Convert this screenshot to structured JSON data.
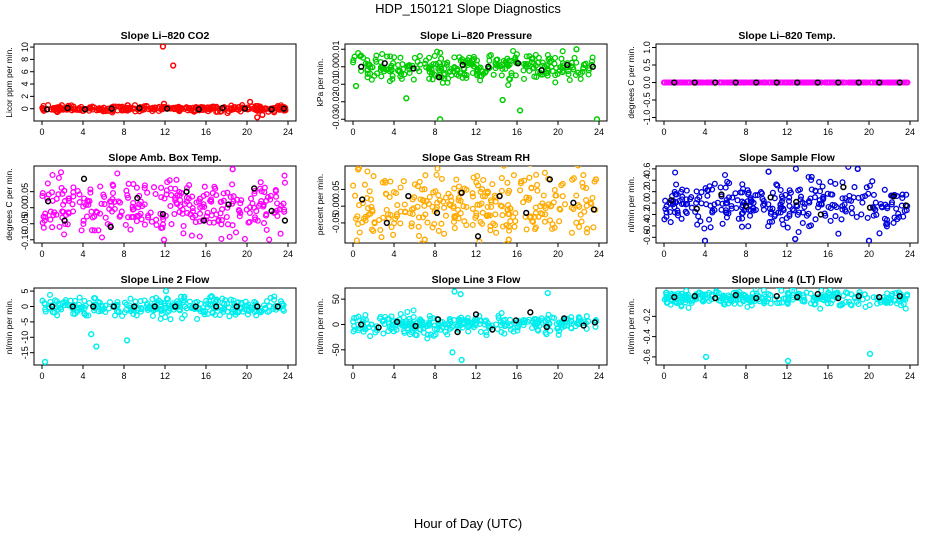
{
  "title": "HDP_150121  Slope Diagnostics",
  "xlabel": "Hour of Day (UTC)",
  "chart_data": [
    {
      "type": "scatter",
      "title": "Slope Li–820 CO2",
      "ylabel": "Licor ppm per min.",
      "color": "#ff0000",
      "xlim": [
        0,
        24
      ],
      "xticks": [
        0,
        4,
        8,
        12,
        16,
        20,
        24
      ],
      "ylim": [
        -2,
        10.5
      ],
      "yticks": [
        0,
        2,
        4,
        6,
        8,
        10
      ],
      "center": 0,
      "spread": 0.25,
      "outliers": [
        {
          "x": 11.8,
          "y": 10.1
        },
        {
          "x": 12.8,
          "y": 7.0
        },
        {
          "x": 11.9,
          "y": 0.8
        },
        {
          "x": 20.3,
          "y": 1.1
        },
        {
          "x": 21,
          "y": -1.4
        },
        {
          "x": 21.5,
          "y": -1.0
        }
      ],
      "black_points": [
        {
          "x": 0.5,
          "y": -0.1
        },
        {
          "x": 2.5,
          "y": 0.1
        },
        {
          "x": 4.2,
          "y": -0.1
        },
        {
          "x": 6.8,
          "y": 0.0
        },
        {
          "x": 9.5,
          "y": 0.1
        },
        {
          "x": 12.2,
          "y": 0.0
        },
        {
          "x": 15.3,
          "y": -0.1
        },
        {
          "x": 17.6,
          "y": 0.1
        },
        {
          "x": 19.8,
          "y": 0.0
        },
        {
          "x": 22.4,
          "y": -0.1
        },
        {
          "x": 23.6,
          "y": 0.0
        }
      ]
    },
    {
      "type": "scatter",
      "title": "Slope Li–820 Pressure",
      "ylabel": "kPa per min.",
      "color": "#00cc00",
      "xlim": [
        0,
        24
      ],
      "xticks": [
        0,
        4,
        8,
        12,
        16,
        20,
        24
      ],
      "ylim": [
        -0.031,
        0.013
      ],
      "yticks": [
        -0.03,
        -0.02,
        -0.01,
        0.0,
        0.01
      ],
      "center": 0,
      "spread": 0.004,
      "outliers": [
        {
          "x": 0.3,
          "y": -0.011
        },
        {
          "x": 5.2,
          "y": -0.018
        },
        {
          "x": 8.5,
          "y": -0.03
        },
        {
          "x": 14.6,
          "y": -0.019
        },
        {
          "x": 16.3,
          "y": -0.025
        },
        {
          "x": 23.8,
          "y": -0.03
        },
        {
          "x": 21.8,
          "y": 0.01
        }
      ],
      "black_points": [
        {
          "x": 0.8,
          "y": 0.0
        },
        {
          "x": 3.1,
          "y": 0.002
        },
        {
          "x": 5.9,
          "y": -0.001
        },
        {
          "x": 8.4,
          "y": -0.006
        },
        {
          "x": 10.7,
          "y": 0.001
        },
        {
          "x": 13.2,
          "y": 0.0
        },
        {
          "x": 16.1,
          "y": 0.002
        },
        {
          "x": 18.4,
          "y": -0.002
        },
        {
          "x": 20.9,
          "y": 0.001
        },
        {
          "x": 23.4,
          "y": 0.0
        }
      ]
    },
    {
      "type": "scatter",
      "title": "Slope Li–820 Temp.",
      "ylabel": "degrees C per min.",
      "color": "#ff00ff",
      "xlim": [
        0,
        24
      ],
      "xticks": [
        0,
        4,
        8,
        12,
        16,
        20,
        24
      ],
      "ylim": [
        -1.1,
        1.1
      ],
      "yticks": [
        -1.0,
        -0.5,
        0.0,
        0.5,
        1.0
      ],
      "center": 0,
      "spread": 0.0,
      "outliers": [],
      "black_points": [
        {
          "x": 1,
          "y": 0
        },
        {
          "x": 3,
          "y": 0
        },
        {
          "x": 5,
          "y": 0
        },
        {
          "x": 7,
          "y": 0
        },
        {
          "x": 9,
          "y": 0
        },
        {
          "x": 11,
          "y": 0
        },
        {
          "x": 13,
          "y": 0
        },
        {
          "x": 15,
          "y": 0
        },
        {
          "x": 17,
          "y": 0
        },
        {
          "x": 19,
          "y": 0
        },
        {
          "x": 21,
          "y": 0
        },
        {
          "x": 23,
          "y": 0
        }
      ]
    },
    {
      "type": "scatter",
      "title": "Slope Amb. Box Temp.",
      "ylabel": "degrees C per min.",
      "color": "#ff00ff",
      "xlim": [
        0,
        24
      ],
      "xticks": [
        0,
        4,
        8,
        12,
        16,
        20,
        24
      ],
      "ylim": [
        -0.11,
        0.13
      ],
      "yticks": [
        -0.1,
        -0.05,
        0.0,
        0.05
      ],
      "center": 0,
      "spread": 0.04,
      "outliers": [
        {
          "x": 11.9,
          "y": -0.1
        },
        {
          "x": 18.6,
          "y": 0.12
        }
      ],
      "black_points": [
        {
          "x": 0.6,
          "y": 0.02
        },
        {
          "x": 2.2,
          "y": -0.04
        },
        {
          "x": 4.1,
          "y": 0.09
        },
        {
          "x": 6.7,
          "y": -0.06
        },
        {
          "x": 9.3,
          "y": 0.03
        },
        {
          "x": 11.8,
          "y": -0.02
        },
        {
          "x": 14.1,
          "y": 0.05
        },
        {
          "x": 15.8,
          "y": -0.04
        },
        {
          "x": 18.2,
          "y": 0.01
        },
        {
          "x": 20.7,
          "y": 0.06
        },
        {
          "x": 22.4,
          "y": -0.01
        },
        {
          "x": 23.7,
          "y": -0.04
        }
      ]
    },
    {
      "type": "scatter",
      "title": "Slope Gas Stream RH",
      "ylabel": "percent per min.",
      "color": "#ffaa00",
      "xlim": [
        0,
        24
      ],
      "xticks": [
        0,
        4,
        8,
        12,
        16,
        20,
        24
      ],
      "ylim": [
        -0.11,
        0.12
      ],
      "yticks": [
        -0.05,
        0.0,
        0.05
      ],
      "center": 0,
      "spread": 0.05,
      "outliers": [
        {
          "x": 0.5,
          "y": 0.11
        },
        {
          "x": 7.0,
          "y": -0.1
        },
        {
          "x": 15.2,
          "y": -0.1
        },
        {
          "x": 23.7,
          "y": 0.08
        }
      ],
      "black_points": [
        {
          "x": 0.9,
          "y": 0.02
        },
        {
          "x": 3.3,
          "y": -0.05
        },
        {
          "x": 5.4,
          "y": 0.03
        },
        {
          "x": 8.2,
          "y": -0.02
        },
        {
          "x": 10.6,
          "y": 0.04
        },
        {
          "x": 12.2,
          "y": -0.09
        },
        {
          "x": 14.3,
          "y": 0.03
        },
        {
          "x": 16.9,
          "y": -0.02
        },
        {
          "x": 19.2,
          "y": 0.08
        },
        {
          "x": 21.5,
          "y": 0.01
        },
        {
          "x": 23.5,
          "y": -0.01
        }
      ]
    },
    {
      "type": "scatter",
      "title": "Slope Sample Flow",
      "ylabel": "nl/min per min.",
      "color": "#0000dd",
      "xlim": [
        0,
        24
      ],
      "xticks": [
        0,
        4,
        8,
        12,
        16,
        20,
        24
      ],
      "ylim": [
        -0.7,
        0.65
      ],
      "yticks": [
        -0.6,
        -0.4,
        -0.2,
        0.0,
        0.2,
        0.4,
        0.6
      ],
      "center": 0,
      "spread": 0.22,
      "outliers": [
        {
          "x": 4.0,
          "y": -0.66
        },
        {
          "x": 10.2,
          "y": 0.55
        },
        {
          "x": 12.8,
          "y": -0.63
        },
        {
          "x": 18.9,
          "y": 0.6
        },
        {
          "x": 20.0,
          "y": -0.66
        }
      ],
      "black_points": [
        {
          "x": 0.7,
          "y": 0.05
        },
        {
          "x": 3.2,
          "y": -0.1
        },
        {
          "x": 5.6,
          "y": 0.15
        },
        {
          "x": 8.0,
          "y": -0.05
        },
        {
          "x": 10.4,
          "y": 0.1
        },
        {
          "x": 12.9,
          "y": 0.02
        },
        {
          "x": 15.3,
          "y": -0.2
        },
        {
          "x": 17.5,
          "y": 0.28
        },
        {
          "x": 20.1,
          "y": -0.08
        },
        {
          "x": 22.4,
          "y": 0.12
        },
        {
          "x": 23.6,
          "y": -0.04
        }
      ]
    },
    {
      "type": "scatter",
      "title": "Slope Line 2 Flow",
      "ylabel": "nl/min per min.",
      "color": "#00eeee",
      "xlim": [
        0,
        24
      ],
      "xticks": [
        0,
        4,
        8,
        12,
        16,
        20,
        24
      ],
      "ylim": [
        -19,
        6
      ],
      "yticks": [
        -15,
        -10,
        -5,
        0,
        5
      ],
      "center": 0,
      "spread": 1.5,
      "outliers": [
        {
          "x": 0.3,
          "y": -18
        },
        {
          "x": 5.3,
          "y": -13
        },
        {
          "x": 8.3,
          "y": -11
        },
        {
          "x": 12.1,
          "y": 5
        },
        {
          "x": 4.8,
          "y": -9
        }
      ],
      "black_points": [
        {
          "x": 1,
          "y": 0
        },
        {
          "x": 3,
          "y": 0
        },
        {
          "x": 5,
          "y": 0
        },
        {
          "x": 7,
          "y": 0
        },
        {
          "x": 9,
          "y": 0
        },
        {
          "x": 11,
          "y": 0
        },
        {
          "x": 13,
          "y": 0
        },
        {
          "x": 15,
          "y": 0
        },
        {
          "x": 17,
          "y": 0
        },
        {
          "x": 19,
          "y": 0
        },
        {
          "x": 21,
          "y": 0
        },
        {
          "x": 23,
          "y": 0
        }
      ]
    },
    {
      "type": "scatter",
      "title": "Slope Line 3 Flow",
      "ylabel": "nl/min per min.",
      "color": "#00eeee",
      "xlim": [
        0,
        24
      ],
      "xticks": [
        0,
        4,
        8,
        12,
        16,
        20,
        24
      ],
      "ylim": [
        -80,
        72
      ],
      "yticks": [
        -50,
        0,
        50
      ],
      "center": 0,
      "spread": 10,
      "outliers": [
        {
          "x": 9.9,
          "y": 65
        },
        {
          "x": 10.5,
          "y": 60
        },
        {
          "x": 10.6,
          "y": -70
        },
        {
          "x": 9.7,
          "y": -55
        },
        {
          "x": 19.0,
          "y": 62
        }
      ],
      "black_points": [
        {
          "x": 0.8,
          "y": 0
        },
        {
          "x": 2.5,
          "y": -6
        },
        {
          "x": 4.3,
          "y": 5
        },
        {
          "x": 6.1,
          "y": -3
        },
        {
          "x": 8.3,
          "y": 10
        },
        {
          "x": 10.2,
          "y": -15
        },
        {
          "x": 12.0,
          "y": 20
        },
        {
          "x": 13.6,
          "y": -10
        },
        {
          "x": 15.9,
          "y": 8
        },
        {
          "x": 17.3,
          "y": 24
        },
        {
          "x": 18.9,
          "y": -5
        },
        {
          "x": 20.6,
          "y": 12
        },
        {
          "x": 22.5,
          "y": -2
        },
        {
          "x": 23.6,
          "y": 4
        }
      ]
    },
    {
      "type": "scatter",
      "title": "Slope Line 4 (LT) Flow",
      "ylabel": "nl/min per min.",
      "color": "#00eeee",
      "xlim": [
        0,
        24
      ],
      "xticks": [
        0,
        4,
        8,
        12,
        16,
        20,
        24
      ],
      "ylim": [
        -0.68,
        0.08
      ],
      "yticks": [
        -0.6,
        -0.4,
        -0.2
      ],
      "center": -0.02,
      "spread": 0.04,
      "outliers": [
        {
          "x": 4.1,
          "y": -0.6
        },
        {
          "x": 12.1,
          "y": -0.64
        },
        {
          "x": 20.1,
          "y": -0.57
        }
      ],
      "black_points": [
        {
          "x": 1,
          "y": -0.01
        },
        {
          "x": 3,
          "y": 0.0
        },
        {
          "x": 5,
          "y": -0.02
        },
        {
          "x": 7,
          "y": 0.01
        },
        {
          "x": 9,
          "y": -0.02
        },
        {
          "x": 11,
          "y": 0.0
        },
        {
          "x": 13,
          "y": -0.01
        },
        {
          "x": 15,
          "y": 0.02
        },
        {
          "x": 17,
          "y": -0.02
        },
        {
          "x": 19,
          "y": 0.0
        },
        {
          "x": 21,
          "y": -0.01
        },
        {
          "x": 23,
          "y": 0.0
        }
      ]
    }
  ]
}
